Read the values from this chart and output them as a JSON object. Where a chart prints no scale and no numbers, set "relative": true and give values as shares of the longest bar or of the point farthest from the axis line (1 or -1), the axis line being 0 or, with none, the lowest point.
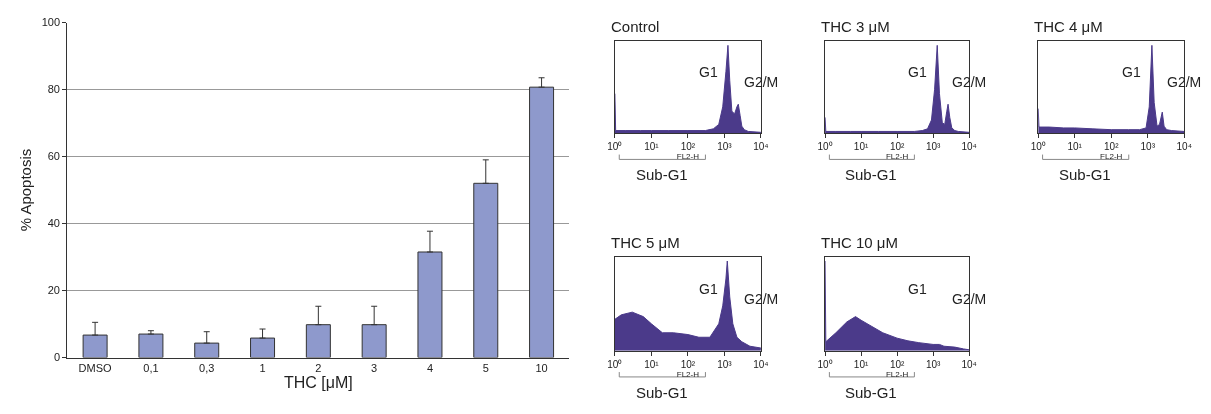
{
  "chart_data": [
    {
      "type": "bar",
      "xlabel": "THC [μM]",
      "ylabel": "% Apoptosis",
      "categories": [
        "DMSO",
        "0,1",
        "0,3",
        "1",
        "2",
        "3",
        "4",
        "5",
        "10"
      ],
      "values": [
        6.7,
        7.0,
        4.3,
        5.8,
        9.8,
        9.8,
        31.5,
        52.0,
        80.7
      ],
      "errors": [
        [
          6.7,
          10.5
        ],
        [
          7.0,
          8.0
        ],
        [
          4.3,
          7.7
        ],
        [
          5.8,
          8.5
        ],
        [
          9.8,
          15.3
        ],
        [
          9.8,
          15.3
        ],
        [
          31.5,
          37.7
        ],
        [
          52.0,
          59.0
        ],
        [
          80.7,
          83.5
        ]
      ],
      "color": "#8e99cc",
      "ylim": [
        0,
        100
      ],
      "yticks": [
        0,
        20,
        40,
        60,
        80,
        100
      ],
      "grid": "y"
    },
    {
      "type": "area",
      "title": "Control",
      "xlabel": "FL2-H",
      "relative": true,
      "log": "x",
      "tick_labels": "x",
      "xlim": [
        1,
        10000
      ],
      "xticks": [
        {
          "value": 1,
          "label": "10⁰"
        },
        {
          "value": 10,
          "label": "10¹"
        },
        {
          "value": 100,
          "label": "10²"
        },
        {
          "value": 1000,
          "label": "10³"
        },
        {
          "value": 10000,
          "label": "10⁴"
        }
      ],
      "x": [
        1,
        1.05,
        2,
        5,
        10,
        30,
        100,
        300,
        500,
        700,
        900,
        1100,
        1250,
        1400,
        1600,
        1900,
        2200,
        2400,
        2700,
        3000,
        3500,
        4500,
        10000
      ],
      "series": [
        {
          "color": "#4b3a8a",
          "values": [
            0.45,
            0.03,
            0.03,
            0.03,
            0.03,
            0.03,
            0.03,
            0.03,
            0.05,
            0.1,
            0.3,
            0.7,
            1.0,
            0.6,
            0.25,
            0.22,
            0.3,
            0.33,
            0.2,
            0.08,
            0.04,
            0.02,
            0.01
          ]
        }
      ],
      "annotations": [
        "G1",
        "G2/M",
        "Sub-G1"
      ]
    },
    {
      "type": "area",
      "title": "THC 3 μM",
      "xlabel": "FL2-H",
      "relative": true,
      "log": "x",
      "tick_labels": "x",
      "xlim": [
        1,
        10000
      ],
      "xticks": [
        {
          "value": 1,
          "label": "10⁰"
        },
        {
          "value": 10,
          "label": "10¹"
        },
        {
          "value": 100,
          "label": "10²"
        },
        {
          "value": 1000,
          "label": "10³"
        },
        {
          "value": 10000,
          "label": "10⁴"
        }
      ],
      "x": [
        1,
        1.05,
        2,
        5,
        10,
        30,
        100,
        300,
        500,
        700,
        900,
        1100,
        1300,
        1500,
        1800,
        2100,
        2400,
        2600,
        2900,
        3300,
        4000,
        5000,
        10000
      ],
      "series": [
        {
          "color": "#4b3a8a",
          "values": [
            0.18,
            0.02,
            0.02,
            0.02,
            0.02,
            0.02,
            0.02,
            0.02,
            0.03,
            0.05,
            0.15,
            0.5,
            1.0,
            0.45,
            0.12,
            0.1,
            0.25,
            0.33,
            0.18,
            0.06,
            0.03,
            0.02,
            0.01
          ]
        }
      ],
      "annotations": [
        "G1",
        "G2/M",
        "Sub-G1"
      ]
    },
    {
      "type": "area",
      "title": "THC 4 μM",
      "xlabel": "FL2-H",
      "relative": true,
      "log": "x",
      "tick_labels": "x",
      "xlim": [
        1,
        10000
      ],
      "xticks": [
        {
          "value": 1,
          "label": "10⁰"
        },
        {
          "value": 10,
          "label": "10¹"
        },
        {
          "value": 100,
          "label": "10²"
        },
        {
          "value": 1000,
          "label": "10³"
        },
        {
          "value": 10000,
          "label": "10⁴"
        }
      ],
      "x": [
        1,
        1.05,
        2,
        5,
        10,
        30,
        100,
        300,
        600,
        900,
        1100,
        1300,
        1500,
        1800,
        2100,
        2500,
        2800,
        3300,
        4500,
        10000
      ],
      "series": [
        {
          "color": "#4b3a8a",
          "values": [
            0.28,
            0.07,
            0.07,
            0.06,
            0.06,
            0.05,
            0.04,
            0.04,
            0.04,
            0.06,
            0.3,
            1.0,
            0.35,
            0.08,
            0.1,
            0.24,
            0.08,
            0.04,
            0.03,
            0.02
          ]
        }
      ],
      "annotations": [
        "G1",
        "G2/M",
        "Sub-G1"
      ]
    },
    {
      "type": "area",
      "title": "THC 5 μM",
      "xlabel": "FL2-H",
      "relative": true,
      "log": "x",
      "tick_labels": "x",
      "xlim": [
        1,
        10000
      ],
      "xticks": [
        {
          "value": 1,
          "label": "10⁰"
        },
        {
          "value": 10,
          "label": "10¹"
        },
        {
          "value": 100,
          "label": "10²"
        },
        {
          "value": 1000,
          "label": "10³"
        },
        {
          "value": 10000,
          "label": "10⁴"
        }
      ],
      "x": [
        1,
        1.5,
        3,
        6,
        10,
        20,
        40,
        100,
        200,
        400,
        700,
        900,
        1100,
        1200,
        1400,
        1700,
        2200,
        3000,
        5000,
        10000
      ],
      "series": [
        {
          "color": "#4b3a8a",
          "values": [
            0.35,
            0.4,
            0.43,
            0.38,
            0.3,
            0.2,
            0.2,
            0.18,
            0.15,
            0.15,
            0.3,
            0.5,
            0.8,
            1.0,
            0.6,
            0.3,
            0.15,
            0.1,
            0.05,
            0.03
          ]
        }
      ],
      "annotations": [
        "G1",
        "G2/M",
        "Sub-G1"
      ]
    },
    {
      "type": "area",
      "title": "THC 10 μM",
      "xlabel": "FL2-H",
      "relative": true,
      "log": "x",
      "tick_labels": "x",
      "xlim": [
        1,
        10000
      ],
      "xticks": [
        {
          "value": 1,
          "label": "10⁰"
        },
        {
          "value": 10,
          "label": "10¹"
        },
        {
          "value": 100,
          "label": "10²"
        },
        {
          "value": 1000,
          "label": "10³"
        },
        {
          "value": 10000,
          "label": "10⁴"
        }
      ],
      "x": [
        1,
        1.05,
        2,
        4,
        7,
        10,
        20,
        40,
        100,
        200,
        400,
        1000,
        1500,
        2000,
        4000,
        7000,
        10000
      ],
      "series": [
        {
          "color": "#4b3a8a",
          "values": [
            1.0,
            0.1,
            0.2,
            0.32,
            0.38,
            0.34,
            0.27,
            0.2,
            0.14,
            0.11,
            0.09,
            0.07,
            0.07,
            0.05,
            0.04,
            0.02,
            0.01
          ]
        }
      ],
      "annotations": [
        "G1",
        "G2/M",
        "Sub-G1"
      ]
    }
  ]
}
